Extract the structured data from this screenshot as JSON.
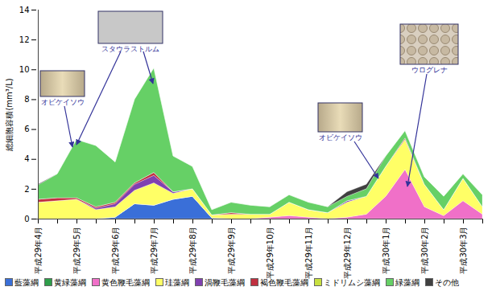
{
  "chart_data": {
    "type": "area",
    "stacked": true,
    "y_label": "総細胞容積(mm³/L)",
    "ylim": [
      0,
      14
    ],
    "yticks": [
      0,
      2,
      4,
      6,
      8,
      10,
      12,
      14
    ],
    "grid": false,
    "legend": "bottom",
    "categories": [
      "平成29年4月",
      null,
      "平成29年5月",
      null,
      "平成29年6月",
      null,
      "平成29年7月",
      null,
      "平成29年8月",
      null,
      "平成29年9月",
      null,
      "平成29年10月",
      null,
      "平成29年11月",
      null,
      "平成29年12月",
      null,
      "平成30年1月",
      null,
      "平成30年2月",
      null,
      "平成30年3月",
      null
    ],
    "series": [
      {
        "name": "藍藻綱",
        "color": "#3a6fd8",
        "values": [
          0,
          0,
          0,
          0,
          0.1,
          1.0,
          0.9,
          1.3,
          1.5,
          0.05,
          0,
          0,
          0,
          0,
          0,
          0,
          0,
          0,
          0,
          0,
          0,
          0,
          0,
          0
        ]
      },
      {
        "name": "黄緑藻綱",
        "color": "#2e9e4a",
        "values": [
          0,
          0,
          0,
          0,
          0,
          0,
          0,
          0,
          0,
          0,
          0,
          0,
          0,
          0,
          0,
          0,
          0,
          0,
          0,
          0,
          0,
          0,
          0,
          0
        ]
      },
      {
        "name": "黄色鞭毛藻綱",
        "color": "#f070c8",
        "values": [
          0,
          0,
          0,
          0,
          0,
          0,
          0,
          0,
          0,
          0,
          0,
          0,
          0.1,
          0.2,
          0.1,
          0,
          0.1,
          0.3,
          1.5,
          3.3,
          0.8,
          0.2,
          1.2,
          0.3
        ]
      },
      {
        "name": "珪藻綱",
        "color": "#ffff66",
        "values": [
          1.1,
          1.2,
          1.3,
          0.6,
          0.7,
          0.9,
          1.5,
          0.4,
          0.5,
          0.2,
          0.3,
          0.3,
          0.2,
          0.9,
          0.5,
          0.4,
          1.0,
          1.2,
          2.0,
          2.0,
          1.5,
          0.4,
          1.5,
          0.5
        ]
      },
      {
        "name": "渦鞭毛藻綱",
        "color": "#8040b0",
        "values": [
          0,
          0,
          0,
          0.1,
          0.2,
          0.4,
          0.5,
          0.1,
          0,
          0,
          0,
          0,
          0,
          0,
          0,
          0,
          0.1,
          0,
          0,
          0,
          0,
          0,
          0,
          0
        ]
      },
      {
        "name": "褐色鞭毛藻綱",
        "color": "#c03040",
        "values": [
          0.2,
          0.2,
          0.1,
          0.1,
          0.1,
          0.1,
          0.2,
          0,
          0,
          0,
          0.1,
          0,
          0,
          0,
          0,
          0,
          0,
          0,
          0,
          0.1,
          0,
          0,
          0,
          0
        ]
      },
      {
        "name": "ミドリムシ藻綱",
        "color": "#c8e040",
        "values": [
          0,
          0,
          0,
          0,
          0,
          0,
          0,
          0,
          0,
          0,
          0,
          0,
          0,
          0,
          0,
          0,
          0,
          0,
          0,
          0,
          0,
          0,
          0,
          0
        ]
      },
      {
        "name": "緑藻綱",
        "color": "#66d066",
        "values": [
          0.95,
          1.6,
          3.9,
          4.1,
          2.7,
          5.6,
          7.0,
          2.4,
          1.5,
          0.35,
          0.7,
          0.6,
          0.5,
          0.5,
          0.5,
          0.4,
          0.3,
          0.5,
          0.7,
          0.5,
          0.5,
          0.9,
          0.3,
          0.8
        ]
      },
      {
        "name": "その他",
        "color": "#404040",
        "values": [
          0.05,
          0,
          0,
          0,
          0,
          0,
          0,
          0,
          0,
          0,
          0,
          0,
          0,
          0,
          0,
          0,
          0.3,
          0.3,
          0,
          0,
          0,
          0,
          0,
          0
        ]
      }
    ],
    "annotations": [
      "オビケイソウ",
      "スタウラストルム",
      "オビケイソウ",
      "ウログレナ"
    ]
  }
}
